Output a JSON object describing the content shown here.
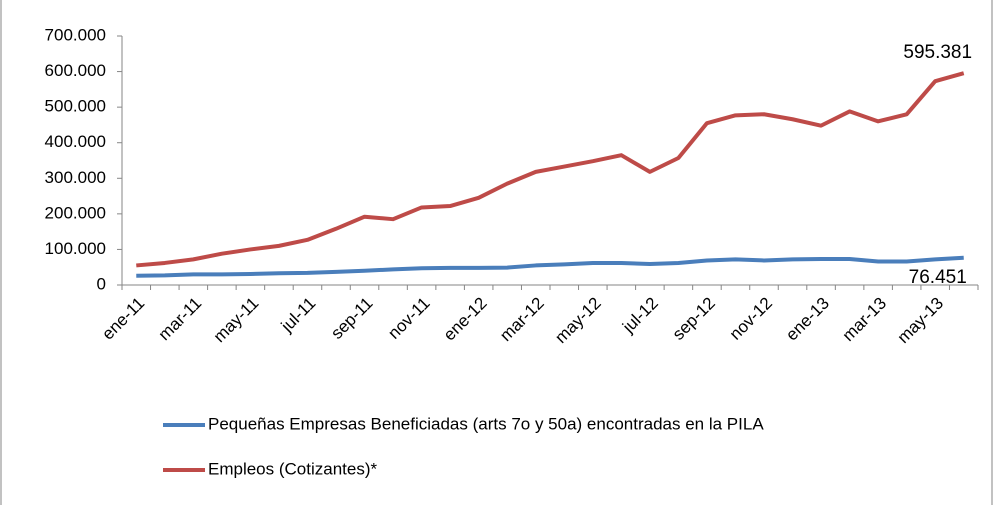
{
  "chart_data": {
    "type": "line",
    "categories": [
      "ene-11",
      null,
      "mar-11",
      null,
      "may-11",
      null,
      "jul-11",
      null,
      "sep-11",
      null,
      "nov-11",
      null,
      "ene-12",
      null,
      "mar-12",
      null,
      "may-12",
      null,
      "jul-12",
      null,
      "sep-12",
      null,
      "nov-12",
      null,
      "ene-13",
      null,
      "mar-13",
      null,
      "may-13",
      null
    ],
    "series": [
      {
        "name": "Pequeñas Empresas Beneficiadas (arts 7o y 50a) encontradas en la PILA",
        "color": "#4a7ebb",
        "values": [
          26000,
          27000,
          30000,
          30000,
          31000,
          33000,
          34000,
          37000,
          40000,
          44000,
          47000,
          48000,
          48000,
          49000,
          55000,
          58000,
          62000,
          62000,
          59000,
          62000,
          69000,
          72000,
          69000,
          72000,
          73000,
          73000,
          66000,
          66000,
          72000,
          76451
        ],
        "value_labels": [
          null,
          null,
          null,
          null,
          null,
          null,
          null,
          null,
          null,
          null,
          null,
          null,
          null,
          null,
          null,
          null,
          null,
          null,
          null,
          null,
          null,
          null,
          null,
          null,
          null,
          null,
          null,
          null,
          null,
          "76.451"
        ]
      },
      {
        "name": "Empleos (Cotizantes)*",
        "color": "#be4b48",
        "values": [
          55000,
          62000,
          72000,
          88000,
          100000,
          110000,
          127000,
          158000,
          192000,
          185000,
          218000,
          222000,
          245000,
          285000,
          318000,
          333000,
          348000,
          365000,
          318000,
          357000,
          455000,
          477000,
          480000,
          466000,
          448000,
          488000,
          460000,
          480000,
          573000,
          595381
        ],
        "value_labels": [
          null,
          null,
          null,
          null,
          null,
          null,
          null,
          null,
          null,
          null,
          null,
          null,
          null,
          null,
          null,
          null,
          null,
          null,
          null,
          null,
          null,
          null,
          null,
          null,
          null,
          null,
          null,
          null,
          null,
          "595.381"
        ]
      }
    ],
    "ylim": [
      0,
      700000
    ],
    "yticks": [
      0,
      {
        "value": 100000,
        "label": "100.000"
      },
      {
        "value": 200000,
        "label": "200.000"
      },
      {
        "value": 300000,
        "label": "300.000"
      },
      {
        "value": 400000,
        "label": "400.000"
      },
      {
        "value": 500000,
        "label": "500.000"
      },
      {
        "value": 600000,
        "label": "600.000"
      },
      {
        "value": 700000,
        "label": "700.000"
      }
    ],
    "legend": "bottom"
  }
}
